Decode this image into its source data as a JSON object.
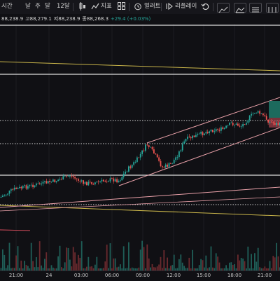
{
  "toolbar": {
    "interval_label": "시간",
    "range_day": "날",
    "range_week": "주",
    "range_month": "달",
    "timeframe": "12달",
    "indicators": "지표",
    "alert": "얼러트",
    "replay": "리플레이"
  },
  "ohlc": {
    "open": "88,238.9",
    "high_label": "고",
    "high": "88,279.1",
    "low_label": "저",
    "low": "88,238.9",
    "close_label": "종",
    "close": "88,268.3",
    "change": "+29.4 (+0.03%)",
    "change_color": "#26a69a"
  },
  "time_axis": {
    "labels": [
      "21:00",
      "24",
      "03:00",
      "06:00",
      "09:00",
      "12:00",
      "15:00",
      "18:00",
      "21:00"
    ]
  },
  "colors": {
    "background": "#101014",
    "up": "#26a69a",
    "down": "#ef5350",
    "channel": "#e8a0a8",
    "yellow_line": "#c9b54a",
    "hline": "#d9d9d9",
    "volume_up": "#1f5e57",
    "volume_down": "#6b2a2e"
  }
}
